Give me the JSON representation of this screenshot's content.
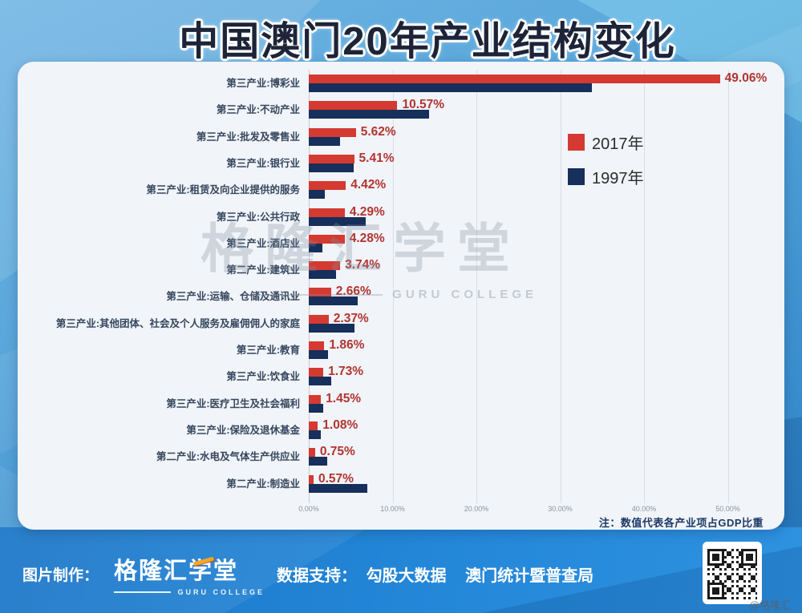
{
  "title": "中国澳门20年产业结构变化",
  "chart_data": {
    "type": "bar",
    "orientation": "horizontal",
    "unit": "percent of GDP",
    "categories": [
      "第三产业:博彩业",
      "第三产业:不动产业",
      "第三产业:批发及零售业",
      "第三产业:银行业",
      "第三产业:租赁及向企业提供的服务",
      "第三产业:公共行政",
      "第三产业:酒店业",
      "第二产业:建筑业",
      "第三产业:运输、仓储及通讯业",
      "第三产业:其他团体、社会及个人服务及雇佣佣人的家庭",
      "第三产业:教育",
      "第三产业:饮食业",
      "第三产业:医疗卫生及社会福利",
      "第三产业:保险及退休基金",
      "第二产业:水电及气体生产供应业",
      "第二产业:制造业"
    ],
    "series": [
      {
        "name": "2017年",
        "color": "#d43a31",
        "values": [
          49.06,
          10.57,
          5.62,
          5.41,
          4.42,
          4.29,
          4.28,
          3.74,
          2.66,
          2.37,
          1.86,
          1.73,
          1.45,
          1.08,
          0.75,
          0.57
        ],
        "value_labels": [
          "49.06%",
          "10.57%",
          "5.62%",
          "5.41%",
          "4.42%",
          "4.29%",
          "4.28%",
          "3.74%",
          "2.66%",
          "2.37%",
          "1.86%",
          "1.73%",
          "1.45%",
          "1.08%",
          "0.75%",
          "0.57%"
        ]
      },
      {
        "name": "1997年",
        "color": "#162f5b",
        "values": [
          33.8,
          14.4,
          3.7,
          5.4,
          1.9,
          6.8,
          1.6,
          3.3,
          5.8,
          5.5,
          2.3,
          2.7,
          1.7,
          1.4,
          2.2,
          7.0
        ]
      }
    ],
    "x_ticks": [
      "0.00%",
      "10.00%",
      "20.00%",
      "30.00%",
      "40.00%",
      "50.00%"
    ],
    "xlim": [
      0,
      54.6
    ],
    "grid": "vertical",
    "legend_position": "inside upper right",
    "note": "注：数值代表各产业项占GDP比重"
  },
  "watermark": {
    "text": "格隆汇学堂",
    "subtext": "GURU COLLEGE"
  },
  "footer": {
    "made_by_label": "图片制作：",
    "logo_text": "格隆汇学堂",
    "logo_subtext": "GURU COLLEGE",
    "data_support_label": "数据支持：",
    "data_sources": [
      "勾股大数据",
      "澳门统计暨普查局"
    ],
    "corner_watermark": "@格隆汇"
  },
  "colors": {
    "series_2017": "#d43a31",
    "series_1997": "#162f5b",
    "value_label": "#b23430",
    "category_label": "#35465e",
    "panel_background": "#f1f4f8",
    "page_background": "#4f9fd6",
    "footer_background": "#2487d8",
    "title_fill": "#1e2438",
    "title_outline": "#ffffff"
  }
}
